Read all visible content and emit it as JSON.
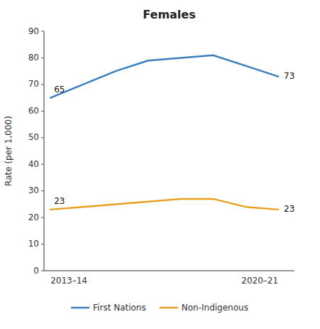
{
  "chart_data": {
    "type": "line",
    "title": "Females",
    "y_label": "Rate (per 1,000)",
    "categories": [
      "2013–14",
      null,
      null,
      null,
      null,
      null,
      null,
      "2020–21"
    ],
    "series": [
      {
        "name": "First Nations",
        "color": "#3a7ebf",
        "values": [
          65,
          70,
          75,
          79,
          80,
          81,
          77,
          73
        ],
        "value_labels": [
          "65",
          null,
          null,
          null,
          null,
          null,
          null,
          "73"
        ]
      },
      {
        "name": "Non-Indigenous",
        "color": "#e8a020",
        "values": [
          23,
          24,
          25,
          26,
          27,
          27,
          24,
          23
        ],
        "value_labels": [
          "23",
          null,
          null,
          null,
          null,
          null,
          null,
          "23"
        ]
      }
    ],
    "ylim": [
      0,
      90
    ],
    "yticks": [
      0,
      10,
      20,
      30,
      40,
      50,
      60,
      70,
      80,
      90
    ],
    "grid": false,
    "legend": "bottom"
  }
}
